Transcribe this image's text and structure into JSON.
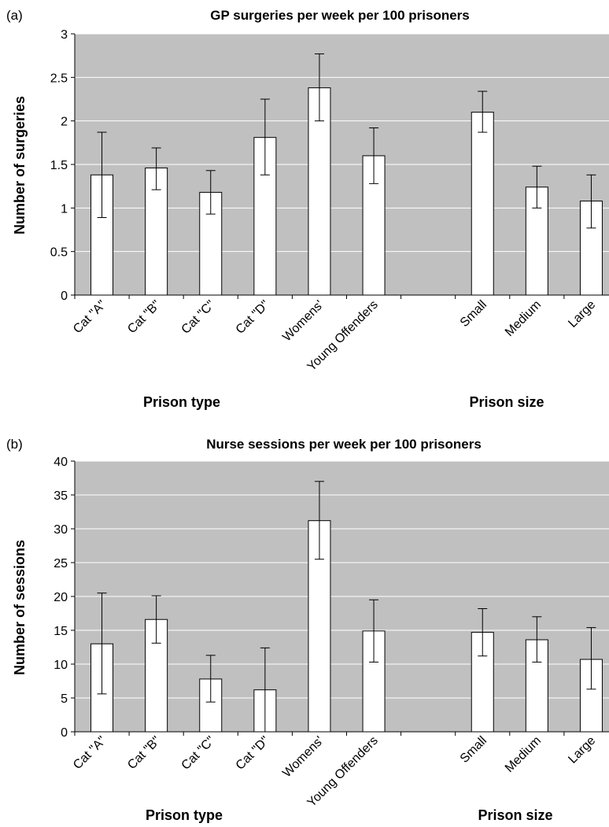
{
  "chart_data": [
    {
      "type": "bar",
      "panel_label": "(a)",
      "title": "GP surgeries per week per 100 prisoners",
      "ylabel": "Number of surgeries",
      "ylim": [
        0,
        3
      ],
      "yticks": [
        "0",
        "0.5",
        "1",
        "1.5",
        "2",
        "2.5",
        "3"
      ],
      "grid": true,
      "categories": [
        "Cat \"A\"",
        "Cat \"B\"",
        "Cat \"C\"",
        "Cat \"D\"",
        "Womens'",
        "Young Offenders",
        "",
        "Small",
        "Medium",
        "Large"
      ],
      "values": [
        1.38,
        1.46,
        1.18,
        1.81,
        2.38,
        1.6,
        null,
        2.1,
        1.24,
        1.08
      ],
      "error_low": [
        0.89,
        1.21,
        0.93,
        1.38,
        2.0,
        1.28,
        null,
        1.87,
        1.0,
        0.77
      ],
      "error_high": [
        1.87,
        1.69,
        1.43,
        2.25,
        2.77,
        1.92,
        null,
        2.34,
        1.48,
        1.38
      ],
      "group_labels": [
        "Prison type",
        "Prison size"
      ]
    },
    {
      "type": "bar",
      "panel_label": "(b)",
      "title": "Nurse sessions per week per 100 prisoners",
      "ylabel": "Number of sessions",
      "ylim": [
        0,
        40
      ],
      "yticks": [
        "0",
        "5",
        "10",
        "15",
        "20",
        "25",
        "30",
        "35",
        "40"
      ],
      "grid": true,
      "categories": [
        "Cat \"A\"",
        "Cat \"B\"",
        "Cat \"C\"",
        "Cat \"D\"",
        "Womens'",
        "Young Offenders",
        "",
        "Small",
        "Medium",
        "Large"
      ],
      "values": [
        13.0,
        16.6,
        7.8,
        6.2,
        31.2,
        14.9,
        null,
        14.7,
        13.6,
        10.7
      ],
      "error_low": [
        5.6,
        13.1,
        4.4,
        0.0,
        25.5,
        10.3,
        null,
        11.2,
        10.3,
        6.3
      ],
      "error_high": [
        20.5,
        20.1,
        11.3,
        12.4,
        37.0,
        19.5,
        null,
        18.2,
        17.0,
        15.4
      ],
      "group_labels": [
        "Prison type",
        "Prison size"
      ]
    }
  ]
}
